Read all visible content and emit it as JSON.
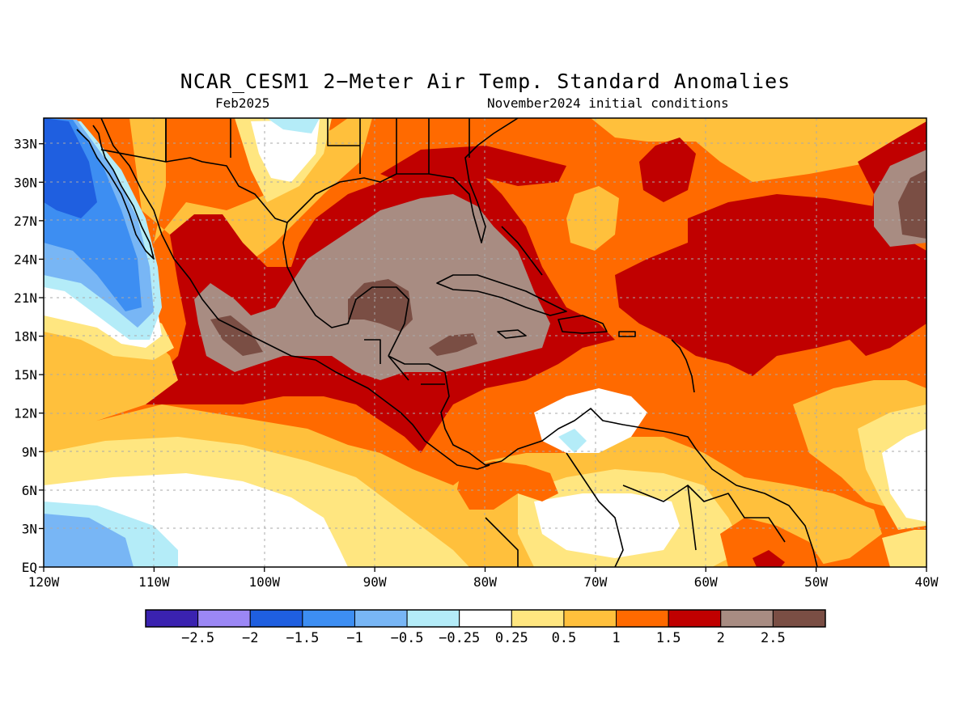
{
  "title": "NCAR_CESM1 2−Meter Air Temp. Standard Anomalies",
  "subtitle_left": "Feb2025",
  "subtitle_right": "November2024 initial conditions",
  "map": {
    "lon_range": [
      -120,
      -40
    ],
    "lat_range": [
      0,
      35
    ],
    "x_tick_labels": [
      "120W",
      "110W",
      "100W",
      "90W",
      "80W",
      "70W",
      "60W",
      "50W",
      "40W"
    ],
    "y_tick_labels": [
      "EQ",
      "3N",
      "6N",
      "9N",
      "12N",
      "15N",
      "18N",
      "21N",
      "24N",
      "27N",
      "30N",
      "33N"
    ],
    "grid": true
  },
  "legend": {
    "colors": [
      "#3a22b0",
      "#9b87f5",
      "#1f5fe0",
      "#3d8ef2",
      "#78b6f5",
      "#b4ecf8",
      "#ffffff",
      "#ffe680",
      "#ffc03c",
      "#ff6a00",
      "#c00000",
      "#a88c82",
      "#7a4e44"
    ],
    "labels": [
      "−2.5",
      "−2",
      "−1.5",
      "−1",
      "−0.5",
      "−0.25",
      "0.25",
      "0.5",
      "1",
      "1.5",
      "2",
      "2.5"
    ]
  }
}
